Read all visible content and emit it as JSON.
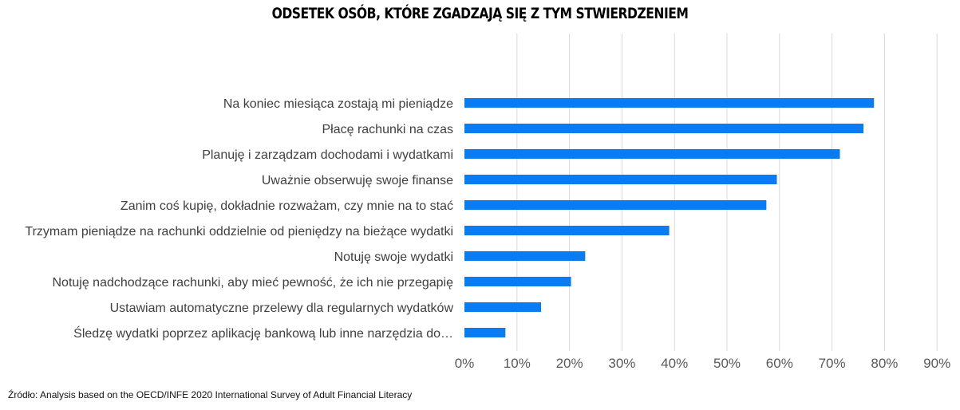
{
  "chart_data": {
    "type": "bar",
    "orientation": "horizontal",
    "title": "ODSETEK OSÓB, KTÓRE ZGADZAJĄ SIĘ Z TYM STWIERDZENIEM",
    "categories": [
      "Na koniec miesiąca zostają mi pieniądze",
      "Płacę rachunki na czas",
      "Planuję i zarządzam dochodami i wydatkami",
      "Uważnie obserwuję swoje finanse",
      "Zanim coś kupię, dokładnie rozważam, czy mnie na to stać",
      "Trzymam pieniądze na rachunki oddzielnie od pieniędzy na bieżące wydatki",
      "Notuję swoje wydatki",
      "Notuję nadchodzące rachunki, aby mieć pewność, że ich nie przegapię",
      "Ustawiam automatyczne przelewy dla regularnych wydatków",
      "Śledzę wydatki poprzez aplikację bankową lub inne narzędzia do…"
    ],
    "values": [
      78,
      76,
      71.5,
      59.5,
      57.5,
      39,
      23,
      20.3,
      14.6,
      7.8
    ],
    "xlim": [
      0,
      90
    ],
    "x_ticks": [
      "0%",
      "10%",
      "20%",
      "30%",
      "40%",
      "50%",
      "60%",
      "70%",
      "80%",
      "90%"
    ],
    "grid": true,
    "bar_color": "#0a7cf2",
    "source": "Źródło: Analysis based on the OECD/INFE 2020 International Survey of Adult Financial Literacy"
  }
}
